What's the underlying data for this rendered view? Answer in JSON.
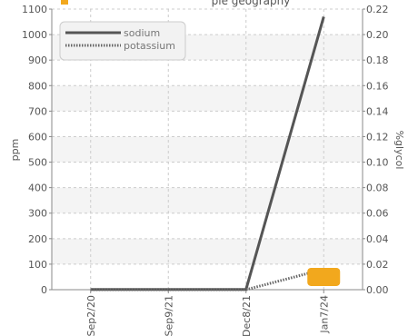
{
  "chart_data": {
    "type": "line",
    "title": "ple geography",
    "categories": [
      "Sep2/20",
      "Sep9/21",
      "Dec8/21",
      "Jan7/24"
    ],
    "y_left": {
      "label": "ppm",
      "lim": [
        0,
        1100
      ],
      "ticks": [
        0,
        100,
        200,
        300,
        400,
        500,
        600,
        700,
        800,
        900,
        1000,
        1100
      ]
    },
    "y_right": {
      "label": "%glycol",
      "lim": [
        0,
        0.22
      ],
      "ticks": [
        "0.00",
        "0.02",
        "0.04",
        "0.06",
        "0.08",
        "0.10",
        "0.12",
        "0.14",
        "0.16",
        "0.18",
        "0.20",
        "0.22"
      ]
    },
    "series": [
      {
        "name": "sodium",
        "axis": "left",
        "style": "solid",
        "color": "#555555",
        "values": [
          1,
          1,
          1,
          1070
        ]
      },
      {
        "name": "potassium",
        "axis": "left",
        "style": "dotted",
        "color": "#666666",
        "values": [
          0,
          0,
          0,
          80
        ]
      }
    ],
    "markers": [
      {
        "category": "Jan7/24",
        "axis": "right",
        "value": 0.01,
        "color": "#f2a81d"
      }
    ],
    "grid": true,
    "legend": "top-left",
    "colors": {
      "title_icon": "#f2a81d",
      "band": "#f4f4f4",
      "grid": "#cccccc"
    }
  }
}
